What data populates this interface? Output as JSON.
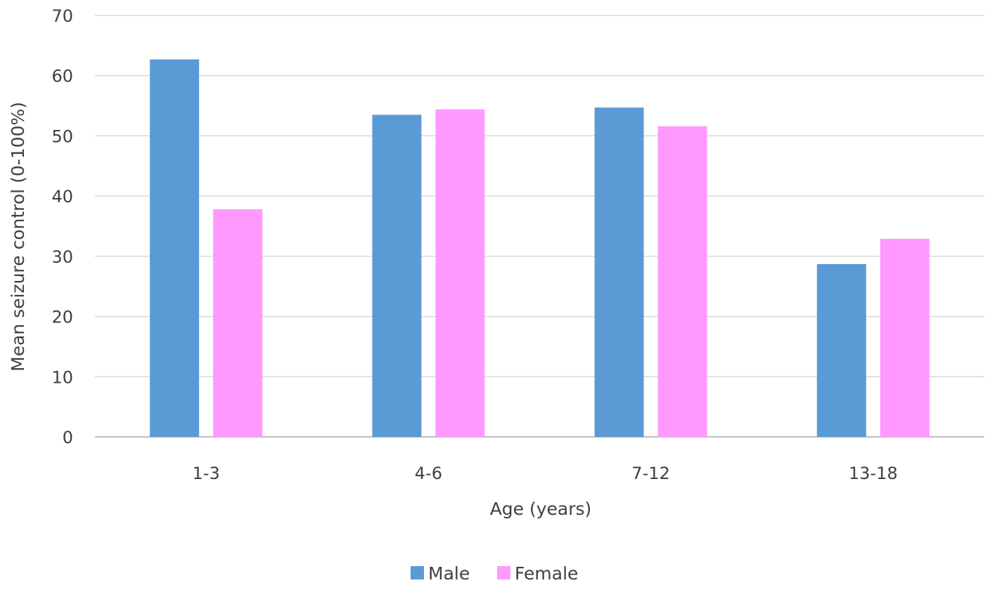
{
  "chart_data": {
    "type": "bar",
    "title": "",
    "xlabel": "Age (years)",
    "ylabel": "Mean seizure control (0-100%)",
    "categories": [
      "1-3",
      "4-6",
      "7-12",
      "13-18"
    ],
    "series": [
      {
        "name": "Male",
        "values": [
          62.7,
          53.5,
          54.7,
          28.7
        ],
        "color": "#5B9BD5"
      },
      {
        "name": "Female",
        "values": [
          37.8,
          54.4,
          51.6,
          32.9
        ],
        "color": "#FF99FF"
      }
    ],
    "ylim": [
      0,
      70
    ],
    "yticks": [
      "0",
      "10",
      "20",
      "30",
      "40",
      "50",
      "60",
      "70"
    ],
    "grid": true,
    "legend_position": "bottom"
  }
}
